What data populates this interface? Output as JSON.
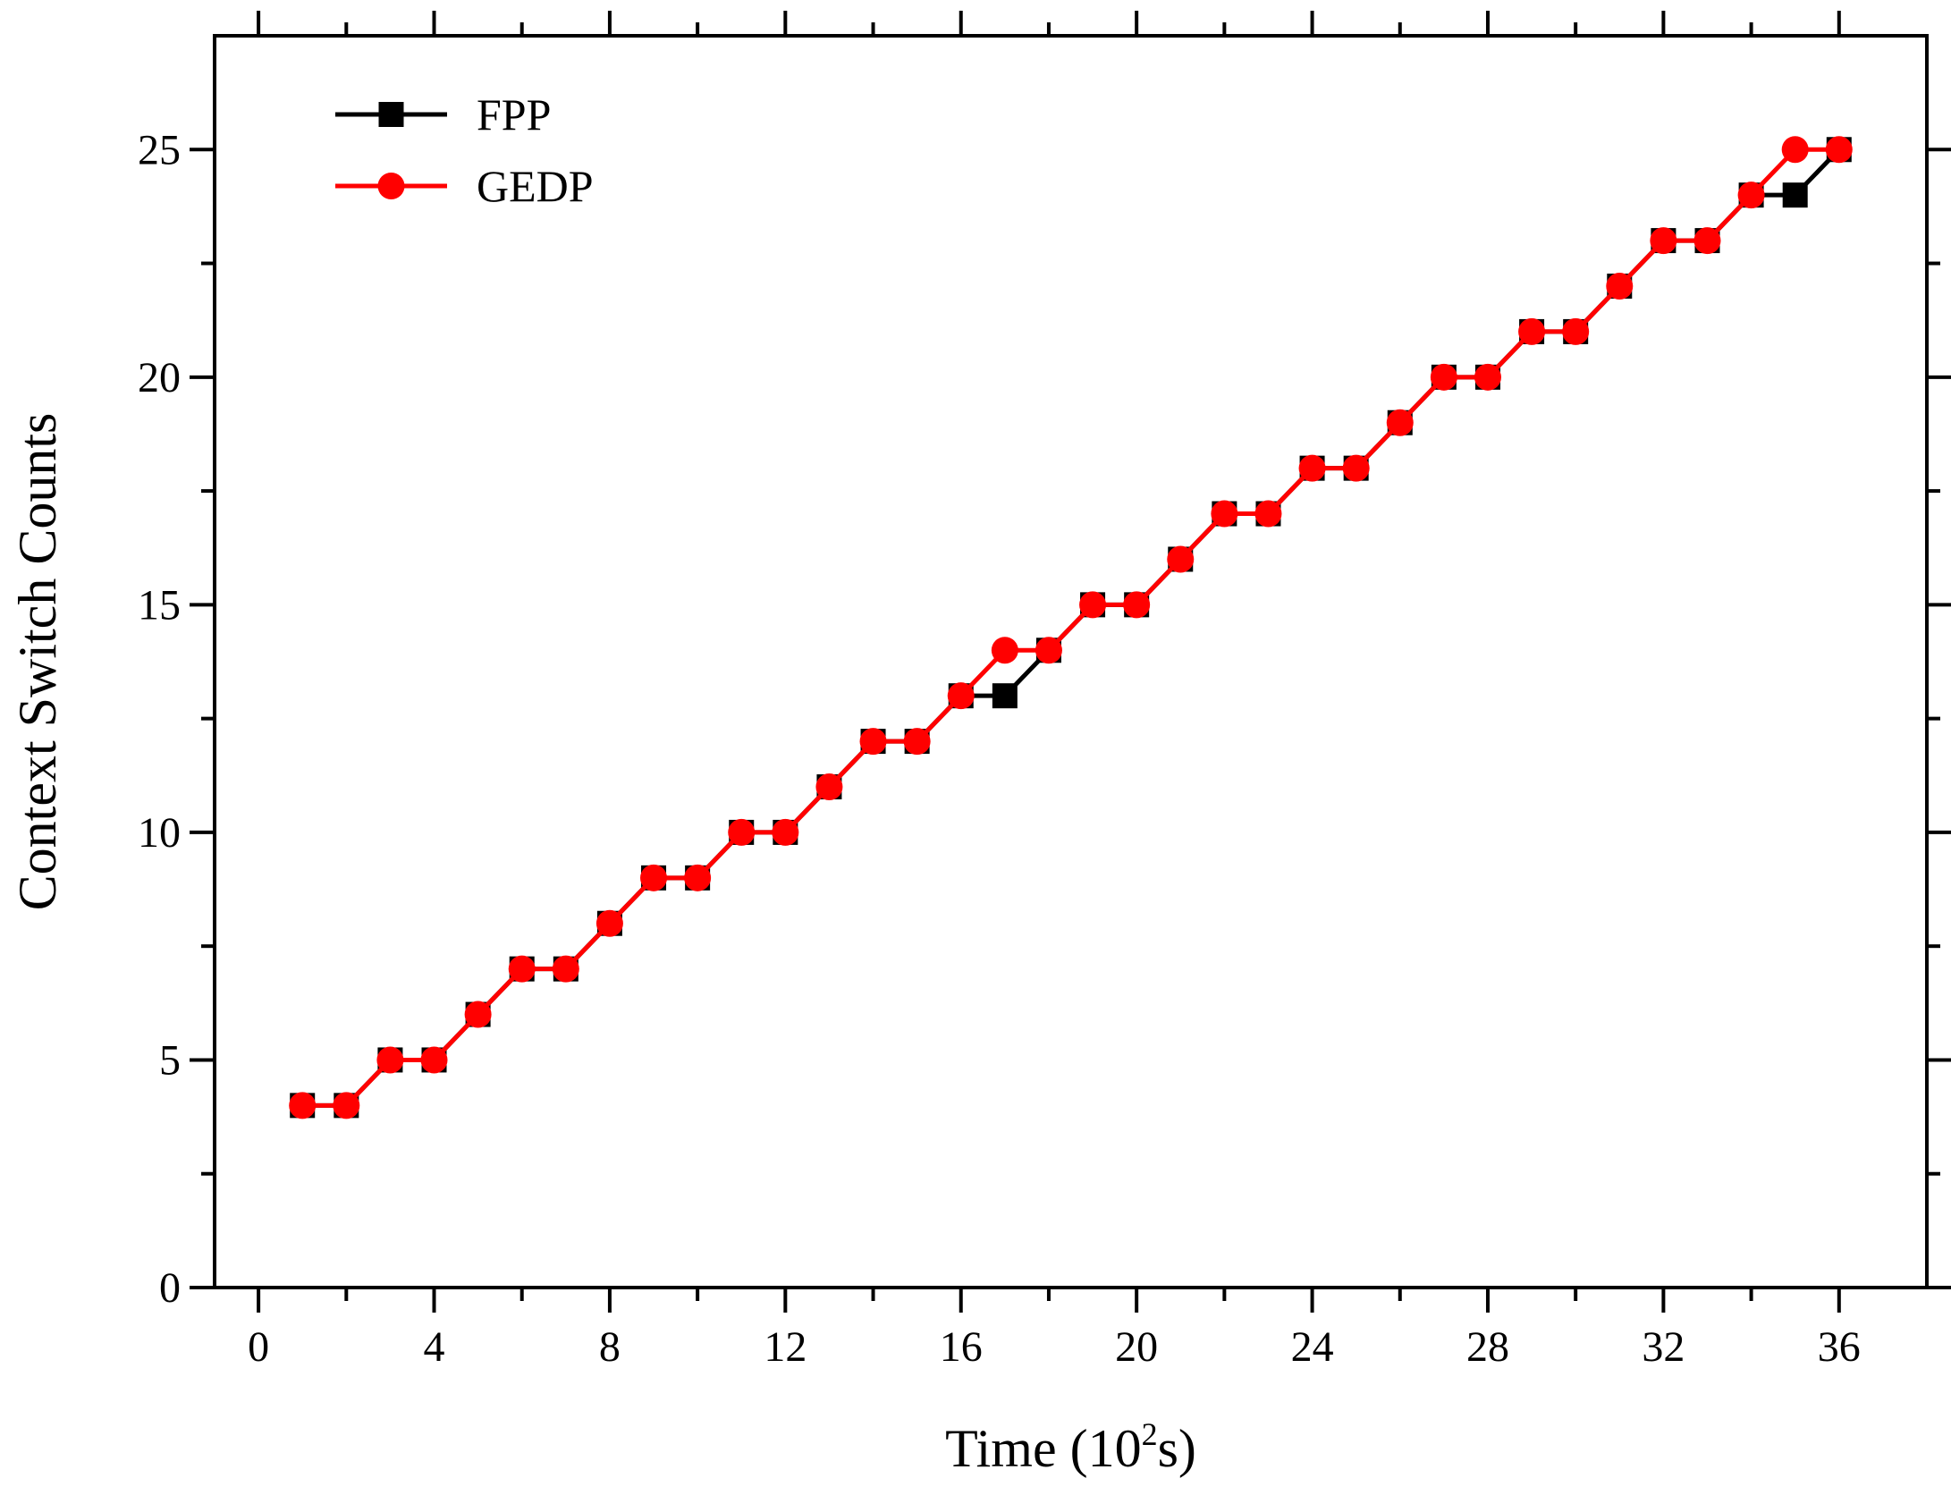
{
  "chart_data": {
    "type": "line",
    "title": "",
    "xlabel_main": "Time (10",
    "xlabel_sup": "2",
    "xlabel_unit": "s)",
    "ylabel": "Context Switch Counts",
    "xlim": [
      -1,
      38
    ],
    "ylim": [
      0,
      27.5
    ],
    "x_ticks": [
      0,
      4,
      8,
      12,
      16,
      20,
      24,
      28,
      32,
      36
    ],
    "x_tick_labels": [
      "0",
      "4",
      "8",
      "12",
      "16",
      "20",
      "24",
      "28",
      "32",
      "36"
    ],
    "x_minor_ticks": [
      2,
      6,
      10,
      14,
      18,
      22,
      26,
      30,
      34
    ],
    "y_ticks": [
      0,
      5,
      10,
      15,
      20,
      25
    ],
    "y_tick_labels": [
      "0",
      "5",
      "10",
      "15",
      "20",
      "25"
    ],
    "y_minor_ticks": [
      2.5,
      7.5,
      12.5,
      17.5,
      22.5
    ],
    "grid": false,
    "legend_position": "top-left",
    "x": [
      1,
      2,
      3,
      4,
      5,
      6,
      7,
      8,
      9,
      10,
      11,
      12,
      13,
      14,
      15,
      16,
      17,
      18,
      19,
      20,
      21,
      22,
      23,
      24,
      25,
      26,
      27,
      28,
      29,
      30,
      31,
      32,
      33,
      34,
      35,
      36
    ],
    "series": [
      {
        "name": "FPP",
        "color": "#000000",
        "marker": "square",
        "values": [
          4,
          4,
          5,
          5,
          6,
          7,
          7,
          8,
          9,
          9,
          10,
          10,
          11,
          12,
          12,
          13,
          13,
          14,
          15,
          15,
          16,
          17,
          17,
          18,
          18,
          19,
          20,
          20,
          21,
          21,
          22,
          23,
          23,
          24,
          24,
          25
        ]
      },
      {
        "name": "GEDP",
        "color": "#ff0000",
        "marker": "circle",
        "values": [
          4,
          4,
          5,
          5,
          6,
          7,
          7,
          8,
          9,
          9,
          10,
          10,
          11,
          12,
          12,
          13,
          14,
          14,
          15,
          15,
          16,
          17,
          17,
          18,
          18,
          19,
          20,
          20,
          21,
          21,
          22,
          23,
          23,
          24,
          25,
          25
        ]
      }
    ]
  }
}
